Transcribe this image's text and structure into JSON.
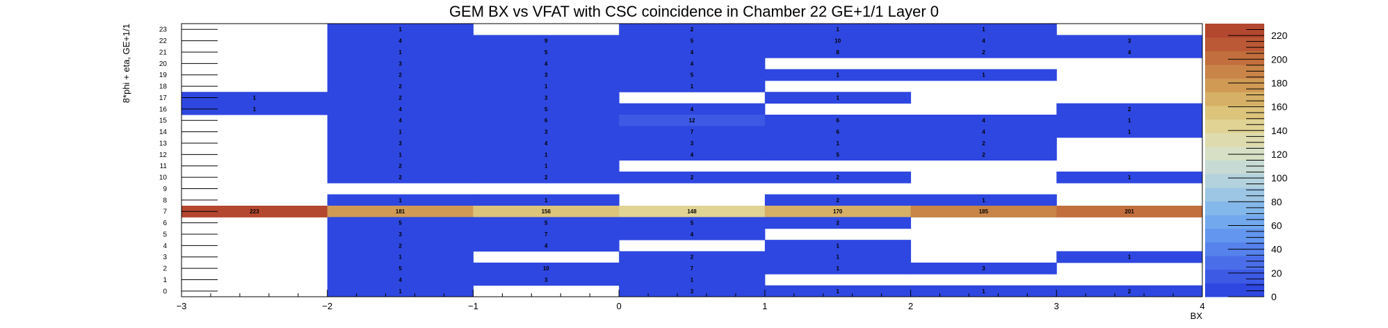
{
  "chart_data": {
    "type": "heatmap",
    "title": "GEM BX vs VFAT with CSC coincidence in Chamber 22 GE+1/1 Layer 0",
    "xlabel": "BX",
    "ylabel": "8*phi + eta, GE+1/1",
    "x_bins": [
      -3,
      -2,
      -1,
      0,
      1,
      2,
      3,
      4
    ],
    "x_tick_labels": [
      "−3",
      "−2",
      "−1",
      "0",
      "1",
      "2",
      "3",
      "4"
    ],
    "y_tick_labels": [
      "0",
      "1",
      "2",
      "3",
      "4",
      "5",
      "6",
      "7",
      "8",
      "9",
      "10",
      "11",
      "12",
      "13",
      "14",
      "15",
      "16",
      "17",
      "18",
      "19",
      "20",
      "21",
      "22",
      "23"
    ],
    "xlim": [
      -3,
      4
    ],
    "ylim": [
      0,
      24
    ],
    "zlim": [
      0,
      230
    ],
    "z_tick_labels": [
      "0",
      "20",
      "40",
      "60",
      "80",
      "100",
      "120",
      "140",
      "160",
      "180",
      "200",
      "220"
    ],
    "colors": {
      "low": "#2e47e0",
      "palette": [
        "#2e47e0",
        "#3d5ae5",
        "#4a6ee9",
        "#5682ec",
        "#6396ee",
        "#72a8ee",
        "#85b8ea",
        "#9cc6e4",
        "#b3d2de",
        "#c7dbd4",
        "#d7e0c5",
        "#dedcae",
        "#e0d394",
        "#dcc47b",
        "#d6b066",
        "#d09a55",
        "#c98448",
        "#c26e3d",
        "#bb5835",
        "#b4472f"
      ]
    },
    "cells": [
      {
        "x": 1,
        "y": 23,
        "v": 1
      },
      {
        "x": 3,
        "y": 23,
        "v": 2
      },
      {
        "x": 4,
        "y": 23,
        "v": 1
      },
      {
        "x": 5,
        "y": 23,
        "v": 1
      },
      {
        "x": 1,
        "y": 22,
        "v": 4
      },
      {
        "x": 2,
        "y": 22,
        "v": 9
      },
      {
        "x": 3,
        "y": 22,
        "v": 5
      },
      {
        "x": 4,
        "y": 22,
        "v": 10
      },
      {
        "x": 5,
        "y": 22,
        "v": 4
      },
      {
        "x": 6,
        "y": 22,
        "v": 3
      },
      {
        "x": 1,
        "y": 21,
        "v": 1
      },
      {
        "x": 2,
        "y": 21,
        "v": 5
      },
      {
        "x": 3,
        "y": 21,
        "v": 4
      },
      {
        "x": 4,
        "y": 21,
        "v": 8
      },
      {
        "x": 5,
        "y": 21,
        "v": 2
      },
      {
        "x": 6,
        "y": 21,
        "v": 4
      },
      {
        "x": 1,
        "y": 20,
        "v": 3
      },
      {
        "x": 2,
        "y": 20,
        "v": 4
      },
      {
        "x": 3,
        "y": 20,
        "v": 4
      },
      {
        "x": 1,
        "y": 19,
        "v": 2
      },
      {
        "x": 2,
        "y": 19,
        "v": 3
      },
      {
        "x": 3,
        "y": 19,
        "v": 5
      },
      {
        "x": 4,
        "y": 19,
        "v": 1
      },
      {
        "x": 5,
        "y": 19,
        "v": 1
      },
      {
        "x": 1,
        "y": 18,
        "v": 2
      },
      {
        "x": 2,
        "y": 18,
        "v": 1
      },
      {
        "x": 3,
        "y": 18,
        "v": 1
      },
      {
        "x": 0,
        "y": 17,
        "v": 1
      },
      {
        "x": 1,
        "y": 17,
        "v": 2
      },
      {
        "x": 2,
        "y": 17,
        "v": 3
      },
      {
        "x": 4,
        "y": 17,
        "v": 1
      },
      {
        "x": 0,
        "y": 16,
        "v": 1
      },
      {
        "x": 1,
        "y": 16,
        "v": 4
      },
      {
        "x": 2,
        "y": 16,
        "v": 5
      },
      {
        "x": 3,
        "y": 16,
        "v": 4
      },
      {
        "x": 6,
        "y": 16,
        "v": 2
      },
      {
        "x": 1,
        "y": 15,
        "v": 4
      },
      {
        "x": 2,
        "y": 15,
        "v": 6
      },
      {
        "x": 3,
        "y": 15,
        "v": 12
      },
      {
        "x": 4,
        "y": 15,
        "v": 6
      },
      {
        "x": 5,
        "y": 15,
        "v": 4
      },
      {
        "x": 6,
        "y": 15,
        "v": 1
      },
      {
        "x": 1,
        "y": 14,
        "v": 1
      },
      {
        "x": 2,
        "y": 14,
        "v": 3
      },
      {
        "x": 3,
        "y": 14,
        "v": 7
      },
      {
        "x": 4,
        "y": 14,
        "v": 6
      },
      {
        "x": 5,
        "y": 14,
        "v": 4
      },
      {
        "x": 6,
        "y": 14,
        "v": 1
      },
      {
        "x": 1,
        "y": 13,
        "v": 3
      },
      {
        "x": 2,
        "y": 13,
        "v": 4
      },
      {
        "x": 3,
        "y": 13,
        "v": 3
      },
      {
        "x": 4,
        "y": 13,
        "v": 1
      },
      {
        "x": 5,
        "y": 13,
        "v": 2
      },
      {
        "x": 1,
        "y": 12,
        "v": 1
      },
      {
        "x": 2,
        "y": 12,
        "v": 1
      },
      {
        "x": 3,
        "y": 12,
        "v": 4
      },
      {
        "x": 4,
        "y": 12,
        "v": 5
      },
      {
        "x": 5,
        "y": 12,
        "v": 2
      },
      {
        "x": 1,
        "y": 11,
        "v": 2
      },
      {
        "x": 2,
        "y": 11,
        "v": 1
      },
      {
        "x": 1,
        "y": 10,
        "v": 2
      },
      {
        "x": 2,
        "y": 10,
        "v": 2
      },
      {
        "x": 3,
        "y": 10,
        "v": 2
      },
      {
        "x": 4,
        "y": 10,
        "v": 2
      },
      {
        "x": 6,
        "y": 10,
        "v": 1
      },
      {
        "x": 1,
        "y": 8,
        "v": 1
      },
      {
        "x": 2,
        "y": 8,
        "v": 1
      },
      {
        "x": 4,
        "y": 8,
        "v": 2
      },
      {
        "x": 5,
        "y": 8,
        "v": 1
      },
      {
        "x": 0,
        "y": 7,
        "v": 223
      },
      {
        "x": 1,
        "y": 7,
        "v": 181
      },
      {
        "x": 2,
        "y": 7,
        "v": 156
      },
      {
        "x": 3,
        "y": 7,
        "v": 148
      },
      {
        "x": 4,
        "y": 7,
        "v": 170
      },
      {
        "x": 5,
        "y": 7,
        "v": 185
      },
      {
        "x": 6,
        "y": 7,
        "v": 201
      },
      {
        "x": 1,
        "y": 6,
        "v": 5
      },
      {
        "x": 2,
        "y": 6,
        "v": 5
      },
      {
        "x": 3,
        "y": 6,
        "v": 5
      },
      {
        "x": 4,
        "y": 6,
        "v": 2
      },
      {
        "x": 1,
        "y": 5,
        "v": 3
      },
      {
        "x": 2,
        "y": 5,
        "v": 7
      },
      {
        "x": 3,
        "y": 5,
        "v": 4
      },
      {
        "x": 1,
        "y": 4,
        "v": 2
      },
      {
        "x": 2,
        "y": 4,
        "v": 4
      },
      {
        "x": 4,
        "y": 4,
        "v": 1
      },
      {
        "x": 1,
        "y": 3,
        "v": 1
      },
      {
        "x": 3,
        "y": 3,
        "v": 2
      },
      {
        "x": 4,
        "y": 3,
        "v": 1
      },
      {
        "x": 6,
        "y": 3,
        "v": 1
      },
      {
        "x": 1,
        "y": 2,
        "v": 5
      },
      {
        "x": 2,
        "y": 2,
        "v": 10
      },
      {
        "x": 3,
        "y": 2,
        "v": 7
      },
      {
        "x": 4,
        "y": 2,
        "v": 1
      },
      {
        "x": 5,
        "y": 2,
        "v": 3
      },
      {
        "x": 1,
        "y": 1,
        "v": 4
      },
      {
        "x": 2,
        "y": 1,
        "v": 3
      },
      {
        "x": 3,
        "y": 1,
        "v": 1
      },
      {
        "x": 1,
        "y": 0,
        "v": 1
      },
      {
        "x": 3,
        "y": 0,
        "v": 3
      },
      {
        "x": 4,
        "y": 0,
        "v": 1
      },
      {
        "x": 5,
        "y": 0,
        "v": 1
      },
      {
        "x": 6,
        "y": 0,
        "v": 2
      }
    ]
  }
}
